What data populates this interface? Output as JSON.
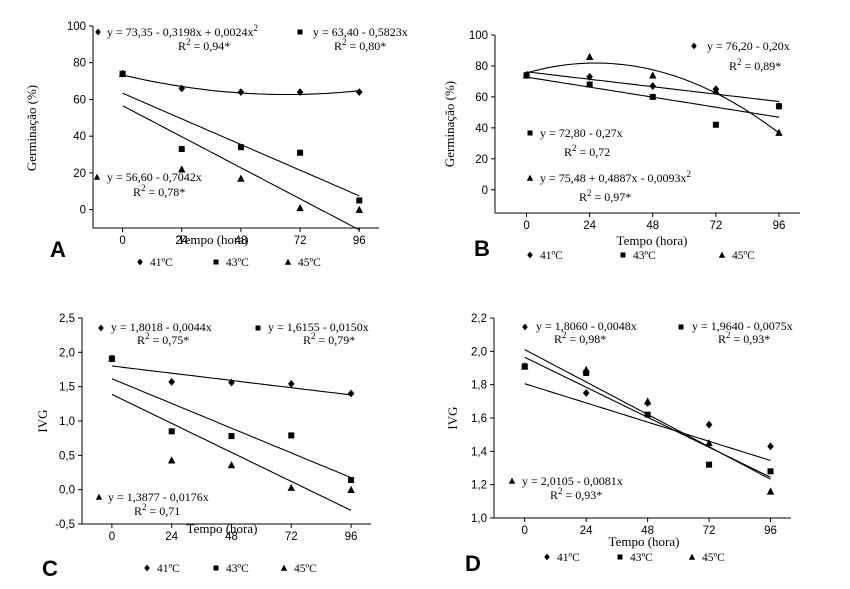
{
  "chart_data": [
    {
      "panel": "A",
      "type": "scatter",
      "xlabel": "Tempo (hora)",
      "ylabel": "Germinação (%)",
      "xlim": [
        -12,
        104
      ],
      "ylim": [
        -10,
        100
      ],
      "xticks": [
        0,
        24,
        48,
        72,
        96
      ],
      "yticks": [
        0,
        20,
        40,
        60,
        80,
        100
      ],
      "ytick_labels": [
        "0",
        "20",
        "40",
        "60",
        "80",
        "100"
      ],
      "axis_origin_x": -12,
      "axis_origin_y": -10,
      "series": [
        {
          "name": "41ºC",
          "marker": "diamond",
          "x": [
            0,
            24,
            48,
            72,
            96
          ],
          "y": [
            74,
            66,
            64,
            64,
            64
          ],
          "fit": {
            "type": "poly2",
            "coeffs": [
              73.35,
              -0.3198,
              0.0024
            ]
          },
          "equation": "y = 73,35 - 0,3198x + 0,0024x",
          "equation_sup": "2",
          "r2_value": " = 0,94*"
        },
        {
          "name": "43ºC",
          "marker": "square",
          "x": [
            0,
            24,
            48,
            72,
            96
          ],
          "y": [
            74,
            33,
            34,
            31,
            5
          ],
          "fit": {
            "type": "linear",
            "coeffs": [
              63.4,
              -0.5823
            ]
          },
          "equation": "y = 63,40 - 0,5823x",
          "equation_sup": "",
          "r2_value": " = 0,80*"
        },
        {
          "name": "45ºC",
          "marker": "triangle",
          "x": [
            0,
            24,
            48,
            72,
            96
          ],
          "y": [
            74,
            22,
            17,
            1,
            0
          ],
          "fit": {
            "type": "linear",
            "coeffs": [
              56.6,
              -0.7042
            ]
          },
          "equation": "y = 56,60 - 0,7042x",
          "equation_sup": "",
          "r2_value": " = 0,78*"
        }
      ]
    },
    {
      "panel": "B",
      "type": "scatter",
      "xlabel": "Tempo (hora)",
      "ylabel": "Germinação (%)",
      "xlim": [
        -12,
        104
      ],
      "ylim": [
        -15,
        100
      ],
      "xticks": [
        0,
        24,
        48,
        72,
        96
      ],
      "yticks": [
        0,
        20,
        40,
        60,
        80,
        100
      ],
      "ytick_labels": [
        "0",
        "20",
        "40",
        "60",
        "80",
        "100"
      ],
      "axis_origin_x": -12,
      "axis_origin_y": -15,
      "series": [
        {
          "name": "41ºC",
          "marker": "diamond",
          "x": [
            0,
            24,
            48,
            72,
            96
          ],
          "y": [
            74,
            73,
            67,
            65,
            54
          ],
          "fit": {
            "type": "linear",
            "coeffs": [
              76.2,
              -0.2
            ]
          },
          "equation": "y = 76,20 - 0,20x",
          "equation_sup": "",
          "r2_value": " = 0,89*"
        },
        {
          "name": "43ºC",
          "marker": "square",
          "x": [
            0,
            24,
            48,
            72,
            96
          ],
          "y": [
            74,
            68,
            60,
            42,
            54
          ],
          "fit": {
            "type": "linear",
            "coeffs": [
              72.8,
              -0.27
            ]
          },
          "equation": "y = 72,80 - 0,27x",
          "equation_sup": "",
          "r2_value": " = 0,72"
        },
        {
          "name": "45ºC",
          "marker": "triangle",
          "x": [
            0,
            24,
            48,
            72,
            96
          ],
          "y": [
            74,
            86,
            74,
            64,
            37
          ],
          "fit": {
            "type": "poly2",
            "coeffs": [
              75.48,
              0.4887,
              -0.0093
            ]
          },
          "equation": "y = 75,48 + 0,4887x - 0,0093x",
          "equation_sup": "2",
          "r2_value": " = 0,97*"
        }
      ]
    },
    {
      "panel": "C",
      "type": "scatter",
      "xlabel": "Tempo (hora)",
      "ylabel": "IVG",
      "xlim": [
        -12,
        104
      ],
      "ylim": [
        -0.5,
        2.5
      ],
      "xticks": [
        0,
        24,
        48,
        72,
        96
      ],
      "yticks": [
        -0.5,
        0,
        0.5,
        1.0,
        1.5,
        2.0,
        2.5
      ],
      "ytick_labels": [
        "-0,5",
        "0,0",
        "0,5",
        "1,0",
        "1,5",
        "2,0",
        "2,5"
      ],
      "axis_origin_x": -12,
      "axis_origin_y": -0.5,
      "series": [
        {
          "name": "41ºC",
          "marker": "diamond",
          "x": [
            0,
            24,
            48,
            72,
            96
          ],
          "y": [
            1.91,
            1.57,
            1.56,
            1.54,
            1.4
          ],
          "fit": {
            "type": "linear",
            "coeffs": [
              1.8018,
              -0.0044
            ]
          },
          "equation": "y = 1,8018 - 0,0044x",
          "equation_sup": "",
          "r2_value": " = 0,75*"
        },
        {
          "name": "43ºC",
          "marker": "square",
          "x": [
            0,
            24,
            48,
            72,
            96
          ],
          "y": [
            1.91,
            0.85,
            0.78,
            0.79,
            0.14
          ],
          "fit": {
            "type": "linear",
            "coeffs": [
              1.6155,
              -0.015
            ]
          },
          "equation": "y = 1,6155 - 0,0150x",
          "equation_sup": "",
          "r2_value": " = 0,79*"
        },
        {
          "name": "45ºC",
          "marker": "triangle",
          "x": [
            0,
            24,
            48,
            72,
            96
          ],
          "y": [
            1.91,
            0.43,
            0.36,
            0.03,
            0.0
          ],
          "fit": {
            "type": "linear",
            "coeffs": [
              1.3877,
              -0.0176
            ]
          },
          "equation": "y = 1,3877 - 0,0176x",
          "equation_sup": "",
          "r2_value": " = 0,71"
        }
      ]
    },
    {
      "panel": "D",
      "type": "scatter",
      "xlabel": "Tempo (hora)",
      "ylabel": "IVG",
      "xlim": [
        -12,
        104
      ],
      "ylim": [
        1.0,
        2.2
      ],
      "xticks": [
        0,
        24,
        48,
        72,
        96
      ],
      "yticks": [
        1.0,
        1.2,
        1.4,
        1.6,
        1.8,
        2.0,
        2.2
      ],
      "ytick_labels": [
        "1,0",
        "1,2",
        "1,4",
        "1,6",
        "1,8",
        "2,0",
        "2,2"
      ],
      "axis_origin_x": -12,
      "axis_origin_y": 1.0,
      "series": [
        {
          "name": "41ºC",
          "marker": "diamond",
          "x": [
            0,
            24,
            48,
            72,
            96
          ],
          "y": [
            1.91,
            1.75,
            1.69,
            1.56,
            1.43
          ],
          "fit": {
            "type": "linear",
            "coeffs": [
              1.806,
              -0.0048
            ]
          },
          "equation": "y = 1,8060 - 0,0048x",
          "equation_sup": "",
          "r2_value": " = 0,98*"
        },
        {
          "name": "43ºC",
          "marker": "square",
          "x": [
            0,
            24,
            48,
            72,
            96
          ],
          "y": [
            1.91,
            1.87,
            1.62,
            1.32,
            1.28
          ],
          "fit": {
            "type": "linear",
            "coeffs": [
              1.964,
              -0.0075
            ]
          },
          "equation": "y = 1,9640 - 0,0075x",
          "equation_sup": "",
          "r2_value": " = 0,93*"
        },
        {
          "name": "45ºC",
          "marker": "triangle",
          "x": [
            0,
            24,
            48,
            72,
            96
          ],
          "y": [
            1.91,
            1.89,
            1.7,
            1.45,
            1.16
          ],
          "fit": {
            "type": "linear",
            "coeffs": [
              2.0105,
              -0.0081
            ]
          },
          "equation": "y = 2,0105 - 0,0081x",
          "equation_sup": "",
          "r2_value": " = 0,93*"
        }
      ]
    }
  ],
  "legend": {
    "items": [
      "41ºC",
      "43ºC",
      "45ºC"
    ]
  },
  "r2_label": "R",
  "r2_sup": "2"
}
